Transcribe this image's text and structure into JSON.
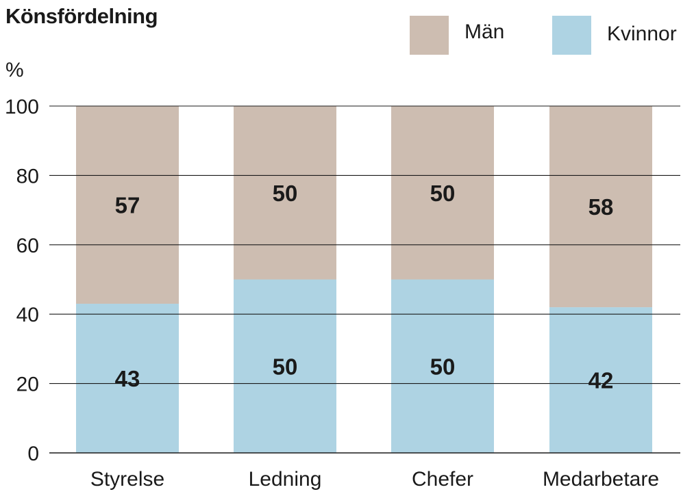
{
  "chart_data": {
    "type": "bar",
    "stacked": true,
    "title": "Könsfördelning",
    "ylabel": "%",
    "xlabel": "",
    "ylim": [
      0,
      100
    ],
    "yticks": [
      0,
      20,
      40,
      60,
      80,
      100
    ],
    "grid": true,
    "legend_position": "top-right",
    "categories": [
      "Styrelse",
      "Ledning",
      "Chefer",
      "Medarbetare"
    ],
    "series": [
      {
        "name": "Kvinnor",
        "color": "#aed3e3",
        "values": [
          43,
          50,
          50,
          42
        ]
      },
      {
        "name": "Män",
        "color": "#cdbdb1",
        "values": [
          57,
          50,
          50,
          58
        ]
      }
    ],
    "legend_order": [
      "Män",
      "Kvinnor"
    ]
  }
}
